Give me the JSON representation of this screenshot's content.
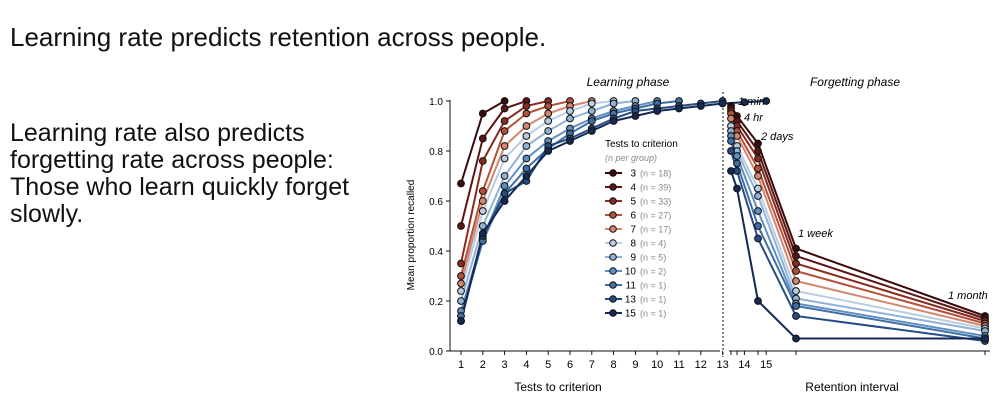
{
  "slide": {
    "title": "Learning rate predicts retention across people.",
    "body": "Learning rate also predicts forgetting rate across people: Those who learn quickly forget slowly."
  },
  "chart_data": {
    "type": "line",
    "panels": {
      "learning": {
        "title": "Learning phase",
        "xlabel": "Tests to criterion",
        "x": [
          1,
          2,
          3,
          4,
          5,
          6,
          7,
          8,
          9,
          10,
          11,
          12,
          13,
          14,
          15
        ]
      },
      "forgetting": {
        "title": "Forgetting phase",
        "xlabel": "Retention interval",
        "intervals": [
          "1 min",
          "4 hr",
          "2 days",
          "1 week",
          "1 month"
        ]
      }
    },
    "ylabel": "Mean proportion recalled",
    "ylim": [
      0,
      1
    ],
    "yticks": [
      "0.0",
      "0.2",
      "0.4",
      "0.6",
      "0.8",
      "1.0"
    ],
    "legend": {
      "title": "Tests to criterion",
      "subtitle": "n per group",
      "subtitle_prefix": "(",
      "subtitle_suffix": ")",
      "position": "center-right"
    },
    "series": [
      {
        "name": "3",
        "n": "n = 18",
        "color": "#3a0a0a",
        "learning": [
          0.67,
          0.95,
          1.0
        ],
        "forgetting": [
          0.98,
          0.94,
          0.83,
          0.41,
          0.14
        ]
      },
      {
        "name": "4",
        "n": "n = 39",
        "color": "#5c1414",
        "learning": [
          0.5,
          0.85,
          0.97,
          1.0
        ],
        "forgetting": [
          0.97,
          0.92,
          0.8,
          0.38,
          0.13
        ]
      },
      {
        "name": "5",
        "n": "n = 33",
        "color": "#8a2a1e",
        "learning": [
          0.35,
          0.76,
          0.92,
          0.98,
          1.0
        ],
        "forgetting": [
          0.96,
          0.9,
          0.77,
          0.35,
          0.12
        ]
      },
      {
        "name": "6",
        "n": "n = 27",
        "color": "#b5503a",
        "learning": [
          0.3,
          0.64,
          0.88,
          0.95,
          0.98,
          1.0
        ],
        "forgetting": [
          0.95,
          0.88,
          0.73,
          0.32,
          0.11
        ]
      },
      {
        "name": "7",
        "n": "n = 17",
        "color": "#d4866e",
        "learning": [
          0.27,
          0.6,
          0.82,
          0.9,
          0.95,
          0.98,
          1.0
        ],
        "forgetting": [
          0.93,
          0.86,
          0.7,
          0.28,
          0.1
        ]
      },
      {
        "name": "8",
        "n": "n = 4",
        "color": "#b9cde3",
        "learning": [
          0.24,
          0.56,
          0.77,
          0.86,
          0.92,
          0.96,
          0.99,
          1.0
        ],
        "forgetting": [
          0.9,
          0.82,
          0.65,
          0.24,
          0.09
        ]
      },
      {
        "name": "9",
        "n": "n = 5",
        "color": "#8fb2d6",
        "learning": [
          0.2,
          0.5,
          0.7,
          0.82,
          0.88,
          0.93,
          0.96,
          0.99,
          1.0
        ],
        "forgetting": [
          0.88,
          0.8,
          0.62,
          0.21,
          0.08
        ]
      },
      {
        "name": "10",
        "n": "n = 2",
        "color": "#5f8fc2",
        "learning": [
          0.16,
          0.45,
          0.66,
          0.77,
          0.84,
          0.89,
          0.93,
          0.96,
          0.98,
          1.0
        ],
        "forgetting": [
          0.86,
          0.78,
          0.56,
          0.19,
          0.06
        ]
      },
      {
        "name": "11",
        "n": "n = 1",
        "color": "#3f6fa6",
        "learning": [
          0.14,
          0.44,
          0.63,
          0.73,
          0.81,
          0.87,
          0.92,
          0.95,
          0.97,
          0.99,
          1.0
        ],
        "forgetting": [
          0.84,
          0.75,
          0.5,
          0.18,
          0.05
        ]
      },
      {
        "name": "13",
        "n": "n = 1",
        "color": "#264c85",
        "learning": [
          0.12,
          0.46,
          0.63,
          0.68,
          0.82,
          0.85,
          0.89,
          0.93,
          0.96,
          0.97,
          0.98,
          0.99,
          1.0
        ],
        "forgetting": [
          0.8,
          0.72,
          0.45,
          0.14,
          0.04
        ]
      },
      {
        "name": "15",
        "n": "n = 1",
        "color": "#142a55",
        "learning": [
          0.12,
          0.47,
          0.6,
          0.7,
          0.8,
          0.84,
          0.88,
          0.92,
          0.94,
          0.96,
          0.97,
          0.98,
          0.99,
          0.995,
          1.0
        ],
        "forgetting": [
          0.72,
          0.65,
          0.2,
          0.05,
          0.05
        ]
      }
    ]
  }
}
